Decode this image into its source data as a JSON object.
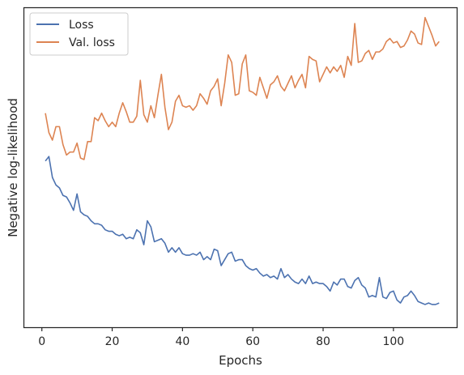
{
  "chart_data": {
    "type": "line",
    "title": "",
    "xlabel": "Epochs",
    "ylabel": "Negative log-likelihood",
    "xlim": [
      -5,
      118
    ],
    "ylim": [
      0,
      100
    ],
    "y_ticks_shown": false,
    "x_ticks": [
      0,
      20,
      40,
      60,
      80,
      100
    ],
    "grid": false,
    "legend_location": "top-left",
    "series": [
      {
        "name": "Loss",
        "color": "#4c72b0",
        "x": [
          1,
          2,
          3,
          4,
          5,
          6,
          7,
          8,
          9,
          10,
          11,
          12,
          13,
          14,
          15,
          16,
          17,
          18,
          19,
          20,
          21,
          22,
          23,
          24,
          25,
          26,
          27,
          28,
          29,
          30,
          31,
          32,
          33,
          34,
          35,
          36,
          37,
          38,
          39,
          40,
          41,
          42,
          43,
          44,
          45,
          46,
          47,
          48,
          49,
          50,
          51,
          52,
          53,
          54,
          55,
          56,
          57,
          58,
          59,
          60,
          61,
          62,
          63,
          64,
          65,
          66,
          67,
          68,
          69,
          70,
          71,
          72,
          73,
          74,
          75,
          76,
          77,
          78,
          79,
          80,
          81,
          82,
          83,
          84,
          85,
          86,
          87,
          88,
          89,
          90,
          91,
          92,
          93,
          94,
          95,
          96,
          97,
          98,
          99,
          100,
          101,
          102,
          103,
          104,
          105,
          106,
          107,
          108,
          109,
          110,
          111,
          112,
          113
        ],
        "y": [
          51.0,
          52.5,
          45.5,
          43.0,
          42.0,
          39.5,
          39.0,
          37.0,
          34.5,
          40.0,
          34.0,
          33.0,
          32.5,
          31.0,
          30.0,
          30.0,
          29.5,
          28.0,
          27.5,
          27.5,
          26.5,
          26.0,
          26.5,
          25.0,
          25.5,
          25.0,
          28.0,
          27.0,
          23.0,
          31.0,
          29.0,
          24.0,
          24.5,
          25.0,
          23.5,
          20.5,
          22.0,
          20.5,
          22.0,
          20.0,
          19.5,
          19.5,
          20.0,
          19.5,
          20.5,
          18.0,
          19.0,
          18.0,
          21.5,
          21.0,
          16.0,
          18.0,
          20.0,
          20.5,
          17.5,
          18.0,
          18.0,
          16.0,
          15.0,
          14.5,
          15.0,
          13.5,
          12.5,
          13.0,
          12.0,
          12.5,
          11.5,
          15.0,
          12.0,
          13.0,
          11.5,
          10.5,
          10.0,
          11.5,
          10.0,
          12.5,
          10.0,
          10.5,
          10.0,
          10.0,
          9.0,
          7.5,
          10.5,
          9.5,
          11.5,
          11.5,
          9.0,
          8.5,
          11.0,
          12.0,
          9.5,
          8.5,
          5.5,
          6.0,
          5.5,
          12.0,
          5.5,
          5.0,
          7.0,
          7.5,
          4.5,
          3.5,
          5.5,
          6.0,
          7.5,
          6.0,
          4.0,
          3.5,
          3.0,
          3.5,
          3.0,
          3.0,
          3.5
        ]
      },
      {
        "name": "Val. loss",
        "color": "#dd8452",
        "x": [
          1,
          2,
          3,
          4,
          5,
          6,
          7,
          8,
          9,
          10,
          11,
          12,
          13,
          14,
          15,
          16,
          17,
          18,
          19,
          20,
          21,
          22,
          23,
          24,
          25,
          26,
          27,
          28,
          29,
          30,
          31,
          32,
          33,
          34,
          35,
          36,
          37,
          38,
          39,
          40,
          41,
          42,
          43,
          44,
          45,
          46,
          47,
          48,
          49,
          50,
          51,
          52,
          53,
          54,
          55,
          56,
          57,
          58,
          59,
          60,
          61,
          62,
          63,
          64,
          65,
          66,
          67,
          68,
          69,
          70,
          71,
          72,
          73,
          74,
          75,
          76,
          77,
          78,
          79,
          80,
          81,
          82,
          83,
          84,
          85,
          86,
          87,
          88,
          89,
          90,
          91,
          92,
          93,
          94,
          95,
          96,
          97,
          98,
          99,
          100,
          101,
          102,
          103,
          104,
          105,
          106,
          107,
          108,
          109,
          110,
          111,
          112,
          113
        ],
        "y": [
          67.0,
          60.5,
          58.0,
          62.5,
          62.5,
          56.5,
          53.0,
          54.0,
          54.0,
          57.0,
          52.0,
          51.5,
          57.5,
          57.5,
          65.5,
          64.5,
          67.0,
          64.5,
          62.5,
          64.0,
          62.5,
          67.0,
          70.5,
          67.5,
          64.0,
          64.0,
          66.0,
          78.0,
          66.5,
          64.0,
          69.5,
          65.5,
          73.0,
          80.0,
          69.0,
          61.5,
          64.0,
          71.0,
          73.0,
          69.5,
          69.0,
          69.5,
          68.0,
          69.5,
          73.5,
          72.0,
          70.0,
          74.5,
          76.0,
          78.5,
          69.5,
          77.0,
          86.5,
          84.0,
          73.0,
          73.5,
          83.5,
          86.5,
          74.5,
          74.0,
          73.0,
          79.0,
          75.5,
          72.0,
          76.5,
          77.5,
          79.5,
          76.0,
          74.5,
          77.0,
          79.5,
          75.5,
          78.0,
          80.0,
          75.5,
          86.0,
          85.0,
          84.5,
          77.5,
          80.0,
          82.5,
          80.5,
          82.5,
          81.0,
          83.0,
          79.0,
          86.0,
          83.0,
          97.0,
          84.0,
          84.5,
          87.0,
          88.0,
          85.0,
          87.5,
          87.5,
          88.5,
          91.0,
          92.0,
          90.5,
          91.0,
          89.0,
          89.5,
          91.5,
          94.5,
          93.5,
          90.5,
          90.0,
          99.0,
          96.0,
          93.0,
          89.5,
          91.0
        ]
      }
    ]
  }
}
